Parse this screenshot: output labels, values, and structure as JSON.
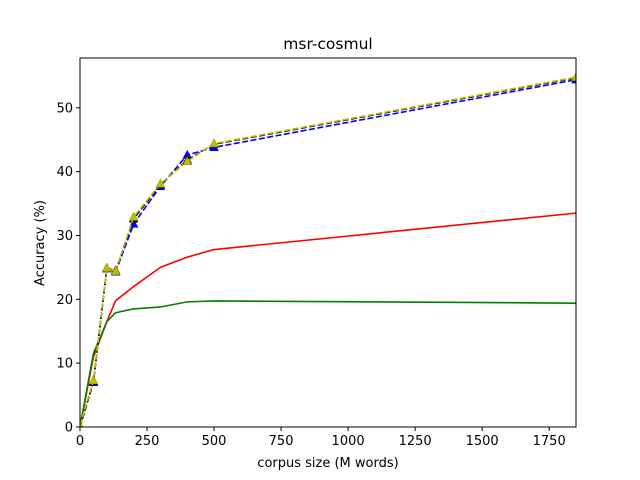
{
  "chart_data": {
    "type": "line",
    "title": "msr-cosmul",
    "xlabel": "corpus size (M words)",
    "ylabel": "Accuracy (%)",
    "xlim": [
      0,
      1850
    ],
    "ylim": [
      0,
      57.8
    ],
    "x_ticks": [
      0,
      250,
      500,
      750,
      1000,
      1250,
      1500,
      1750
    ],
    "y_ticks": [
      0,
      10,
      20,
      30,
      40,
      50
    ],
    "grid": false,
    "legend": "none",
    "series": [
      {
        "color": "#ff0000",
        "style": "solid",
        "marker": "none",
        "x": [
          0,
          50,
          100,
          133,
          200,
          300,
          400,
          500,
          1850
        ],
        "y": [
          0,
          11,
          16.5,
          19.8,
          22,
          25,
          26.6,
          27.8,
          33.5
        ]
      },
      {
        "color": "#008000",
        "style": "solid",
        "marker": "none",
        "x": [
          0,
          50,
          100,
          133,
          200,
          300,
          400,
          500,
          1850
        ],
        "y": [
          0,
          11.5,
          16.5,
          17.9,
          18.5,
          18.8,
          19.6,
          19.75,
          19.4
        ]
      },
      {
        "color": "#0000ff",
        "style": "dashed",
        "marker": "triangle",
        "x": [
          0,
          50,
          100,
          133,
          200,
          300,
          400,
          500,
          1850
        ],
        "y": [
          0,
          7,
          24.8,
          24.3,
          31.8,
          37.7,
          42.6,
          43.8,
          54.4
        ]
      },
      {
        "color": "#000000",
        "style": "dashed",
        "marker": "triangle",
        "x": [
          0,
          50,
          100,
          133,
          200,
          300,
          400,
          500,
          1850
        ],
        "y": [
          0,
          7.2,
          24.9,
          24.5,
          32.6,
          38,
          41.8,
          44.3,
          54.7
        ]
      },
      {
        "color": "#bfbf00",
        "style": "dashed",
        "marker": "triangle",
        "x": [
          0,
          50,
          100,
          133,
          200,
          300,
          400,
          500,
          1850
        ],
        "y": [
          0.2,
          7.3,
          24.9,
          24.4,
          32.9,
          38.1,
          41.6,
          44.4,
          54.8
        ]
      }
    ]
  }
}
